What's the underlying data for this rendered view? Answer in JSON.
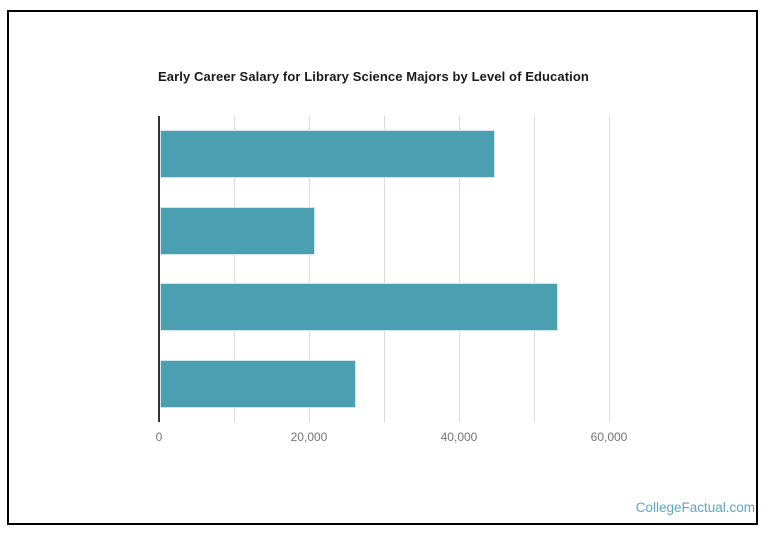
{
  "page": {
    "watermark": "CollegeFactual.com"
  },
  "chart_data": {
    "type": "bar",
    "orientation": "horizontal",
    "title": "Early Career Salary for Library Science Majors by Level of Education",
    "categories": [
      "",
      "",
      "",
      ""
    ],
    "values": [
      44600,
      20700,
      53100,
      26100
    ],
    "xlabel": "",
    "ylabel": "",
    "xlim": [
      0,
      60000
    ],
    "x_ticks": [
      {
        "value": 0,
        "label": "0"
      },
      {
        "value": 20000,
        "label": "20,000"
      },
      {
        "value": 40000,
        "label": "40,000"
      },
      {
        "value": 60000,
        "label": "60,000"
      }
    ],
    "gridline_interval": 10000,
    "grid": true,
    "legend": "none",
    "colors": {
      "bar": "#4A9FB0",
      "bar_stroke": "#cfe7ec",
      "axis_line": "#333333",
      "gridline": "#dadada",
      "tick_label": "#757575",
      "title": "#1a1a1a",
      "watermark": "#5BA7C7",
      "frame_border": "#000000"
    }
  }
}
